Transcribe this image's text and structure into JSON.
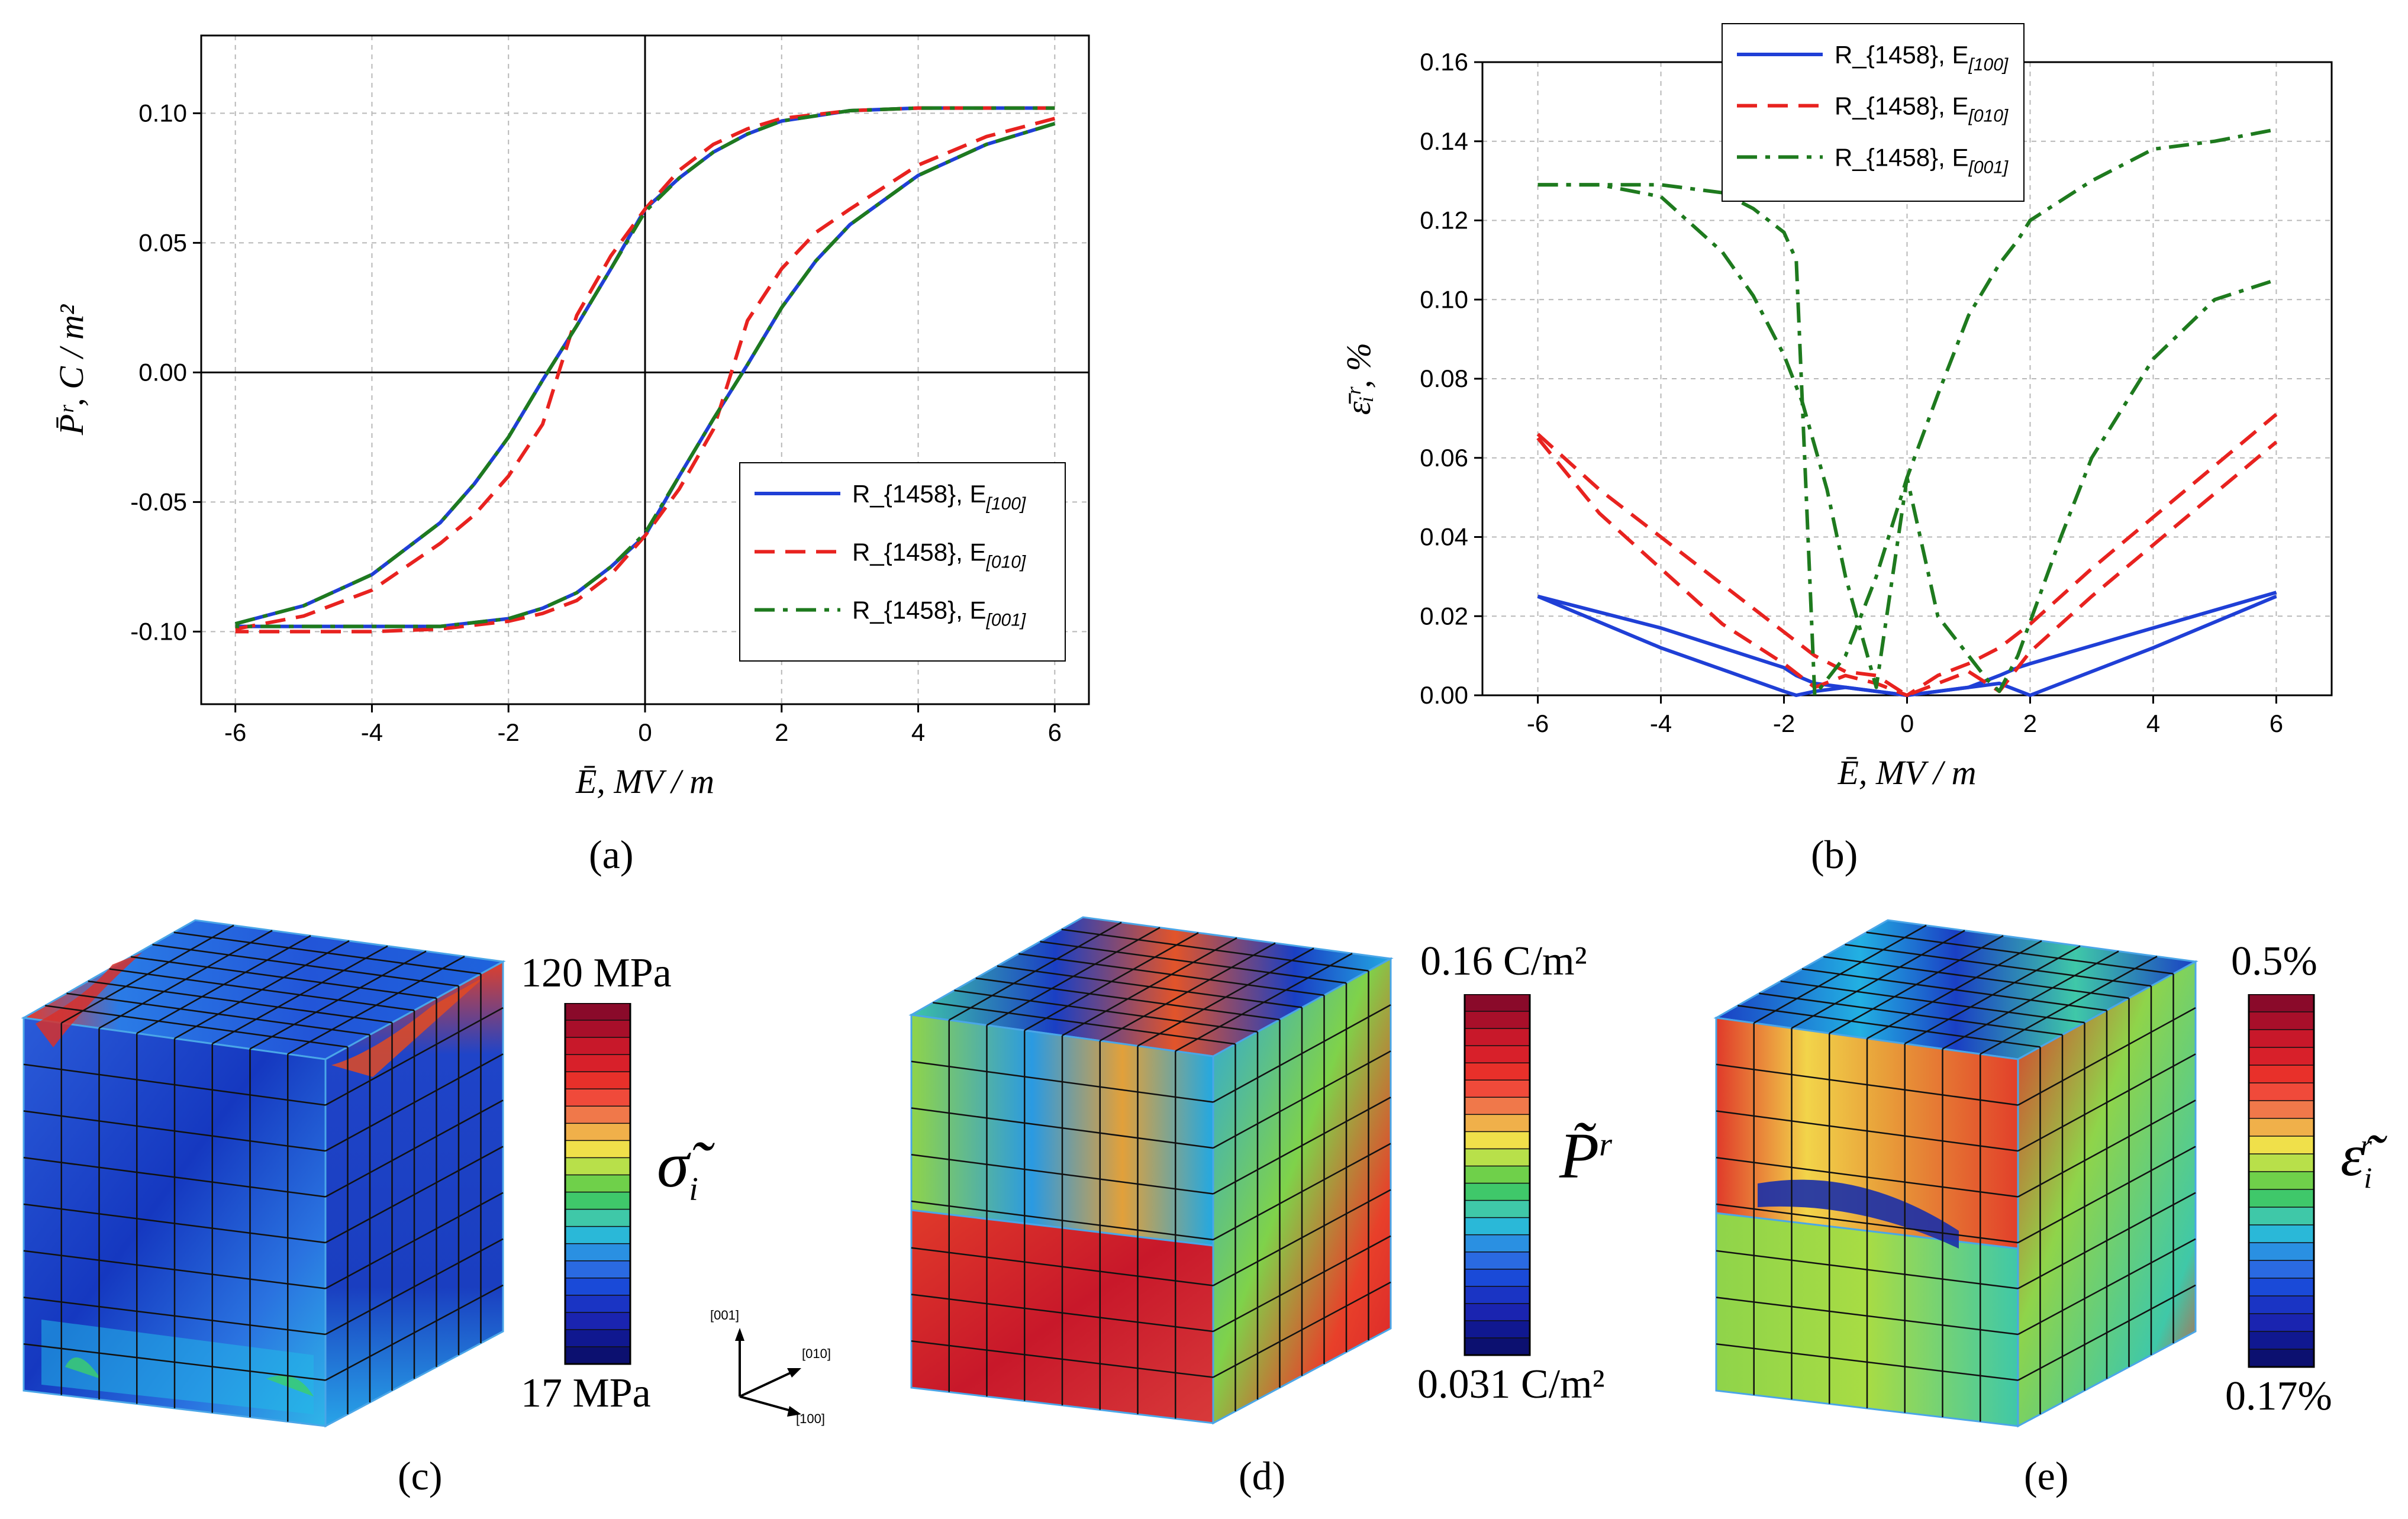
{
  "chart_data": [
    {
      "id": "a",
      "type": "line",
      "xlabel": "Ē, MV / m",
      "ylabel": "P̄ʳ, C / m²",
      "xlim": [
        -6.5,
        6.5
      ],
      "ylim": [
        -0.128,
        0.13
      ],
      "xticks": [
        -6,
        -4,
        -2,
        0,
        2,
        4,
        6
      ],
      "yticks": [
        -0.1,
        -0.05,
        0.0,
        0.05,
        0.1
      ],
      "ytick_labels": [
        "-0.10",
        "-0.05",
        "0.00",
        "0.05",
        "0.10"
      ],
      "grid": true,
      "legend_position": "lower-right",
      "series": [
        {
          "name": "R_{1458}, E",
          "sub": "[100]",
          "color": "#1f3fd6",
          "dash": "solid",
          "branches": [
            {
              "x": [
                -6,
                -5,
                -4,
                -3,
                -2.5,
                -2,
                -1.5,
                -1,
                -0.5,
                0,
                0.5,
                1,
                1.5,
                2,
                3,
                4,
                5,
                6
              ],
              "y": [
                -0.097,
                -0.09,
                -0.078,
                -0.058,
                -0.043,
                -0.025,
                -0.003,
                0.018,
                0.04,
                0.063,
                0.075,
                0.085,
                0.092,
                0.097,
                0.101,
                0.102,
                0.102,
                0.102
              ]
            },
            {
              "x": [
                6,
                5,
                4,
                3,
                2.5,
                2,
                1.5,
                1,
                0.5,
                0,
                -0.5,
                -1,
                -1.5,
                -2,
                -3,
                -4,
                -5,
                -6
              ],
              "y": [
                0.096,
                0.088,
                0.076,
                0.057,
                0.043,
                0.025,
                0.003,
                -0.018,
                -0.04,
                -0.063,
                -0.075,
                -0.085,
                -0.091,
                -0.095,
                -0.098,
                -0.098,
                -0.098,
                -0.098
              ]
            }
          ]
        },
        {
          "name": "R_{1458}, E",
          "sub": "[010]",
          "color": "#e8221f",
          "dash": "dashed",
          "branches": [
            {
              "x": [
                -6,
                -5,
                -4,
                -3,
                -2.5,
                -2,
                -1.5,
                -1.3,
                -1,
                -0.5,
                0,
                0.5,
                1,
                1.5,
                2,
                3,
                4,
                5,
                6
              ],
              "y": [
                -0.099,
                -0.094,
                -0.084,
                -0.066,
                -0.055,
                -0.04,
                -0.02,
                -0.003,
                0.022,
                0.045,
                0.063,
                0.078,
                0.088,
                0.094,
                0.098,
                0.101,
                0.102,
                0.102,
                0.102
              ]
            },
            {
              "x": [
                6,
                5,
                4,
                3,
                2.5,
                2,
                1.5,
                1.3,
                1,
                0.5,
                0,
                -0.5,
                -1,
                -1.5,
                -2,
                -3,
                -4,
                -5,
                -6
              ],
              "y": [
                0.098,
                0.091,
                0.08,
                0.063,
                0.054,
                0.04,
                0.02,
                0.003,
                -0.022,
                -0.045,
                -0.063,
                -0.078,
                -0.088,
                -0.093,
                -0.096,
                -0.099,
                -0.1,
                -0.1,
                -0.1
              ]
            }
          ]
        },
        {
          "name": "R_{1458}, E",
          "sub": "[001]",
          "color": "#1e7a1e",
          "dash": "dashdot",
          "branches": [
            {
              "x": [
                -6,
                -5,
                -4,
                -3,
                -2.5,
                -2,
                -1.5,
                -1,
                -0.5,
                0,
                0.5,
                1,
                1.5,
                2,
                3,
                4,
                5,
                6
              ],
              "y": [
                -0.097,
                -0.09,
                -0.078,
                -0.058,
                -0.043,
                -0.025,
                -0.003,
                0.018,
                0.04,
                0.062,
                0.075,
                0.085,
                0.092,
                0.097,
                0.101,
                0.102,
                0.102,
                0.102
              ]
            },
            {
              "x": [
                6,
                5,
                4,
                3,
                2.5,
                2,
                1.5,
                1,
                0.5,
                0,
                -0.5,
                -1,
                -1.5,
                -2,
                -3,
                -4,
                -5,
                -6
              ],
              "y": [
                0.096,
                0.088,
                0.076,
                0.057,
                0.043,
                0.025,
                0.003,
                -0.018,
                -0.04,
                -0.062,
                -0.075,
                -0.085,
                -0.091,
                -0.095,
                -0.098,
                -0.098,
                -0.098,
                -0.098
              ]
            }
          ]
        }
      ]
    },
    {
      "id": "b",
      "type": "line",
      "xlabel": "Ē, MV / m",
      "ylabel": "ε̄ᵢʳ, %",
      "xlim": [
        -6.9,
        6.9
      ],
      "ylim": [
        0,
        0.16
      ],
      "xticks": [
        -6,
        -4,
        -2,
        0,
        2,
        4,
        6
      ],
      "yticks": [
        0.0,
        0.02,
        0.04,
        0.06,
        0.08,
        0.1,
        0.12,
        0.14,
        0.16
      ],
      "ytick_labels": [
        "0.00",
        "0.02",
        "0.04",
        "0.06",
        "0.08",
        "0.10",
        "0.12",
        "0.14",
        "0.16"
      ],
      "grid": true,
      "legend_position": "top-center",
      "series": [
        {
          "name": "R_{1458}, E",
          "sub": "[100]",
          "color": "#1f3fd6",
          "dash": "solid",
          "branches": [
            {
              "x": [
                -6,
                -4,
                -2,
                -1.8,
                -1.5,
                -1,
                -0.5,
                0,
                0.5,
                1,
                1.5,
                2,
                4,
                6
              ],
              "y": [
                0.025,
                0.017,
                0.007,
                0.005,
                0.003,
                0.002,
                0.001,
                0.0,
                0.001,
                0.002,
                0.003,
                0.0,
                0.012,
                0.025
              ]
            },
            {
              "x": [
                -6,
                -4,
                -2,
                -1.8,
                -1.5,
                -1,
                -0.5,
                0,
                0.5,
                1,
                1.5,
                1.8,
                2,
                4,
                6
              ],
              "y": [
                0.025,
                0.012,
                0.001,
                0.0,
                0.001,
                0.002,
                0.001,
                0.0,
                0.001,
                0.002,
                0.005,
                0.007,
                0.008,
                0.017,
                0.026
              ]
            }
          ]
        },
        {
          "name": "R_{1458}, E",
          "sub": "[010]",
          "color": "#e8221f",
          "dash": "dashed",
          "branches": [
            {
              "x": [
                -6,
                -5,
                -4,
                -3,
                -2,
                -1.5,
                -1,
                -0.5,
                0,
                0.5,
                1,
                1.5,
                2,
                3,
                4,
                5,
                6
              ],
              "y": [
                0.066,
                0.052,
                0.04,
                0.028,
                0.016,
                0.01,
                0.006,
                0.005,
                0.0,
                0.003,
                0.006,
                0.001,
                0.011,
                0.025,
                0.038,
                0.051,
                0.064
              ]
            },
            {
              "x": [
                -6,
                -5,
                -4,
                -3,
                -2,
                -1.5,
                -1,
                -0.5,
                0,
                0.5,
                1,
                1.5,
                2,
                3,
                4,
                5,
                6
              ],
              "y": [
                0.065,
                0.046,
                0.032,
                0.018,
                0.008,
                0.002,
                0.005,
                0.003,
                0.0,
                0.005,
                0.008,
                0.012,
                0.018,
                0.032,
                0.045,
                0.058,
                0.071
              ]
            }
          ]
        },
        {
          "name": "R_{1458}, E",
          "sub": "[001]",
          "color": "#1e7a1e",
          "dash": "dashdot",
          "branches": [
            {
              "x": [
                -6,
                -5,
                -4,
                -3,
                -2.5,
                -2,
                -1.7,
                -1.3,
                -1,
                -0.5,
                0,
                0.5,
                1,
                1.3,
                1.5,
                1.8,
                2.5,
                3,
                4,
                5,
                6
              ],
              "y": [
                0.129,
                0.129,
                0.126,
                0.112,
                0.101,
                0.086,
                0.074,
                0.052,
                0.03,
                0.002,
                0.055,
                0.02,
                0.01,
                0.004,
                0.001,
                0.01,
                0.04,
                0.06,
                0.085,
                0.1,
                0.105
              ]
            },
            {
              "x": [
                -6,
                -5,
                -4,
                -3,
                -2.5,
                -2,
                -1.8,
                -1.5,
                -1.2,
                -1,
                -0.5,
                0,
                0.5,
                1,
                1.5,
                1.8,
                2,
                3,
                4,
                5,
                6
              ],
              "y": [
                0.129,
                0.129,
                0.129,
                0.127,
                0.123,
                0.117,
                0.11,
                0.0,
                0.006,
                0.01,
                0.03,
                0.055,
                0.076,
                0.096,
                0.109,
                0.115,
                0.12,
                0.13,
                0.138,
                0.14,
                0.143
              ]
            }
          ]
        }
      ]
    }
  ],
  "captions": {
    "a": "(a)",
    "b": "(b)",
    "c": "(c)",
    "d": "(d)",
    "e": "(e)"
  },
  "colorbars": {
    "c": {
      "max": "120 MPa",
      "min": "17 MPa",
      "symbol": "σ̃",
      "sub": "i"
    },
    "d": {
      "max": "0.16 C/m²",
      "min": "0.031 C/m²",
      "symbol": "P̃",
      "sup": "r"
    },
    "e": {
      "max": "0.5%",
      "min": "0.17%",
      "symbol": "ε̃",
      "sub": "i",
      "sup": "r"
    }
  },
  "triad": {
    "z": "[001]",
    "y": "[010]",
    "x": "[100]"
  },
  "colors": {
    "blue": "#1f3fd6",
    "red": "#e8221f",
    "green": "#1e7a1e"
  }
}
